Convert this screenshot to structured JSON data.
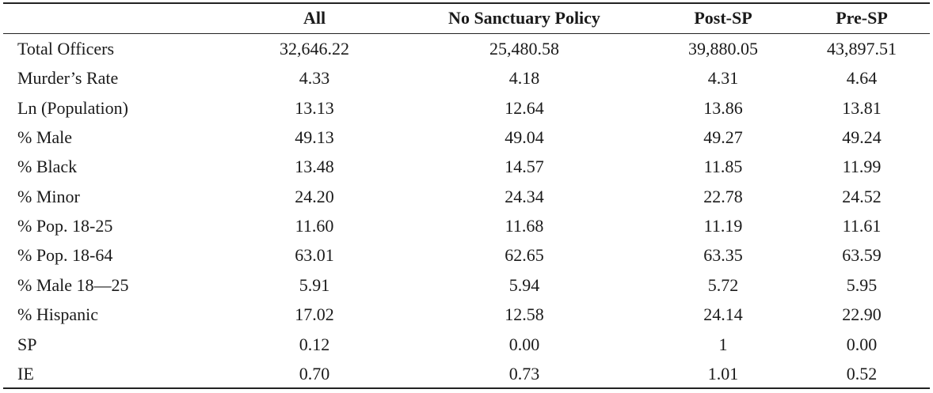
{
  "table": {
    "columns": [
      "All",
      "No Sanctuary Policy",
      "Post-SP",
      "Pre-SP"
    ],
    "rows": [
      {
        "label": "Total Officers",
        "values": [
          "32,646.22",
          "25,480.58",
          "39,880.05",
          "43,897.51"
        ]
      },
      {
        "label": "Murder’s Rate",
        "values": [
          "4.33",
          "4.18",
          "4.31",
          "4.64"
        ]
      },
      {
        "label": "Ln (Population)",
        "values": [
          "13.13",
          "12.64",
          "13.86",
          "13.81"
        ]
      },
      {
        "label": "% Male",
        "values": [
          "49.13",
          "49.04",
          "49.27",
          "49.24"
        ]
      },
      {
        "label": "% Black",
        "values": [
          "13.48",
          "14.57",
          "11.85",
          "11.99"
        ]
      },
      {
        "label": "% Minor",
        "values": [
          "24.20",
          "24.34",
          "22.78",
          "24.52"
        ]
      },
      {
        "label": "% Pop. 18-25",
        "values": [
          "11.60",
          "11.68",
          "11.19",
          "11.61"
        ]
      },
      {
        "label": "% Pop. 18-64",
        "values": [
          "63.01",
          "62.65",
          "63.35",
          "63.59"
        ]
      },
      {
        "label": "% Male 18—25",
        "values": [
          "5.91",
          "5.94",
          "5.72",
          "5.95"
        ]
      },
      {
        "label": "% Hispanic",
        "values": [
          "17.02",
          "12.58",
          "24.14",
          "22.90"
        ]
      },
      {
        "label": "SP",
        "values": [
          "0.12",
          "0.00",
          "1",
          "0.00"
        ]
      },
      {
        "label": "IE",
        "values": [
          "0.70",
          "0.73",
          "1.01",
          "0.52"
        ]
      }
    ]
  }
}
